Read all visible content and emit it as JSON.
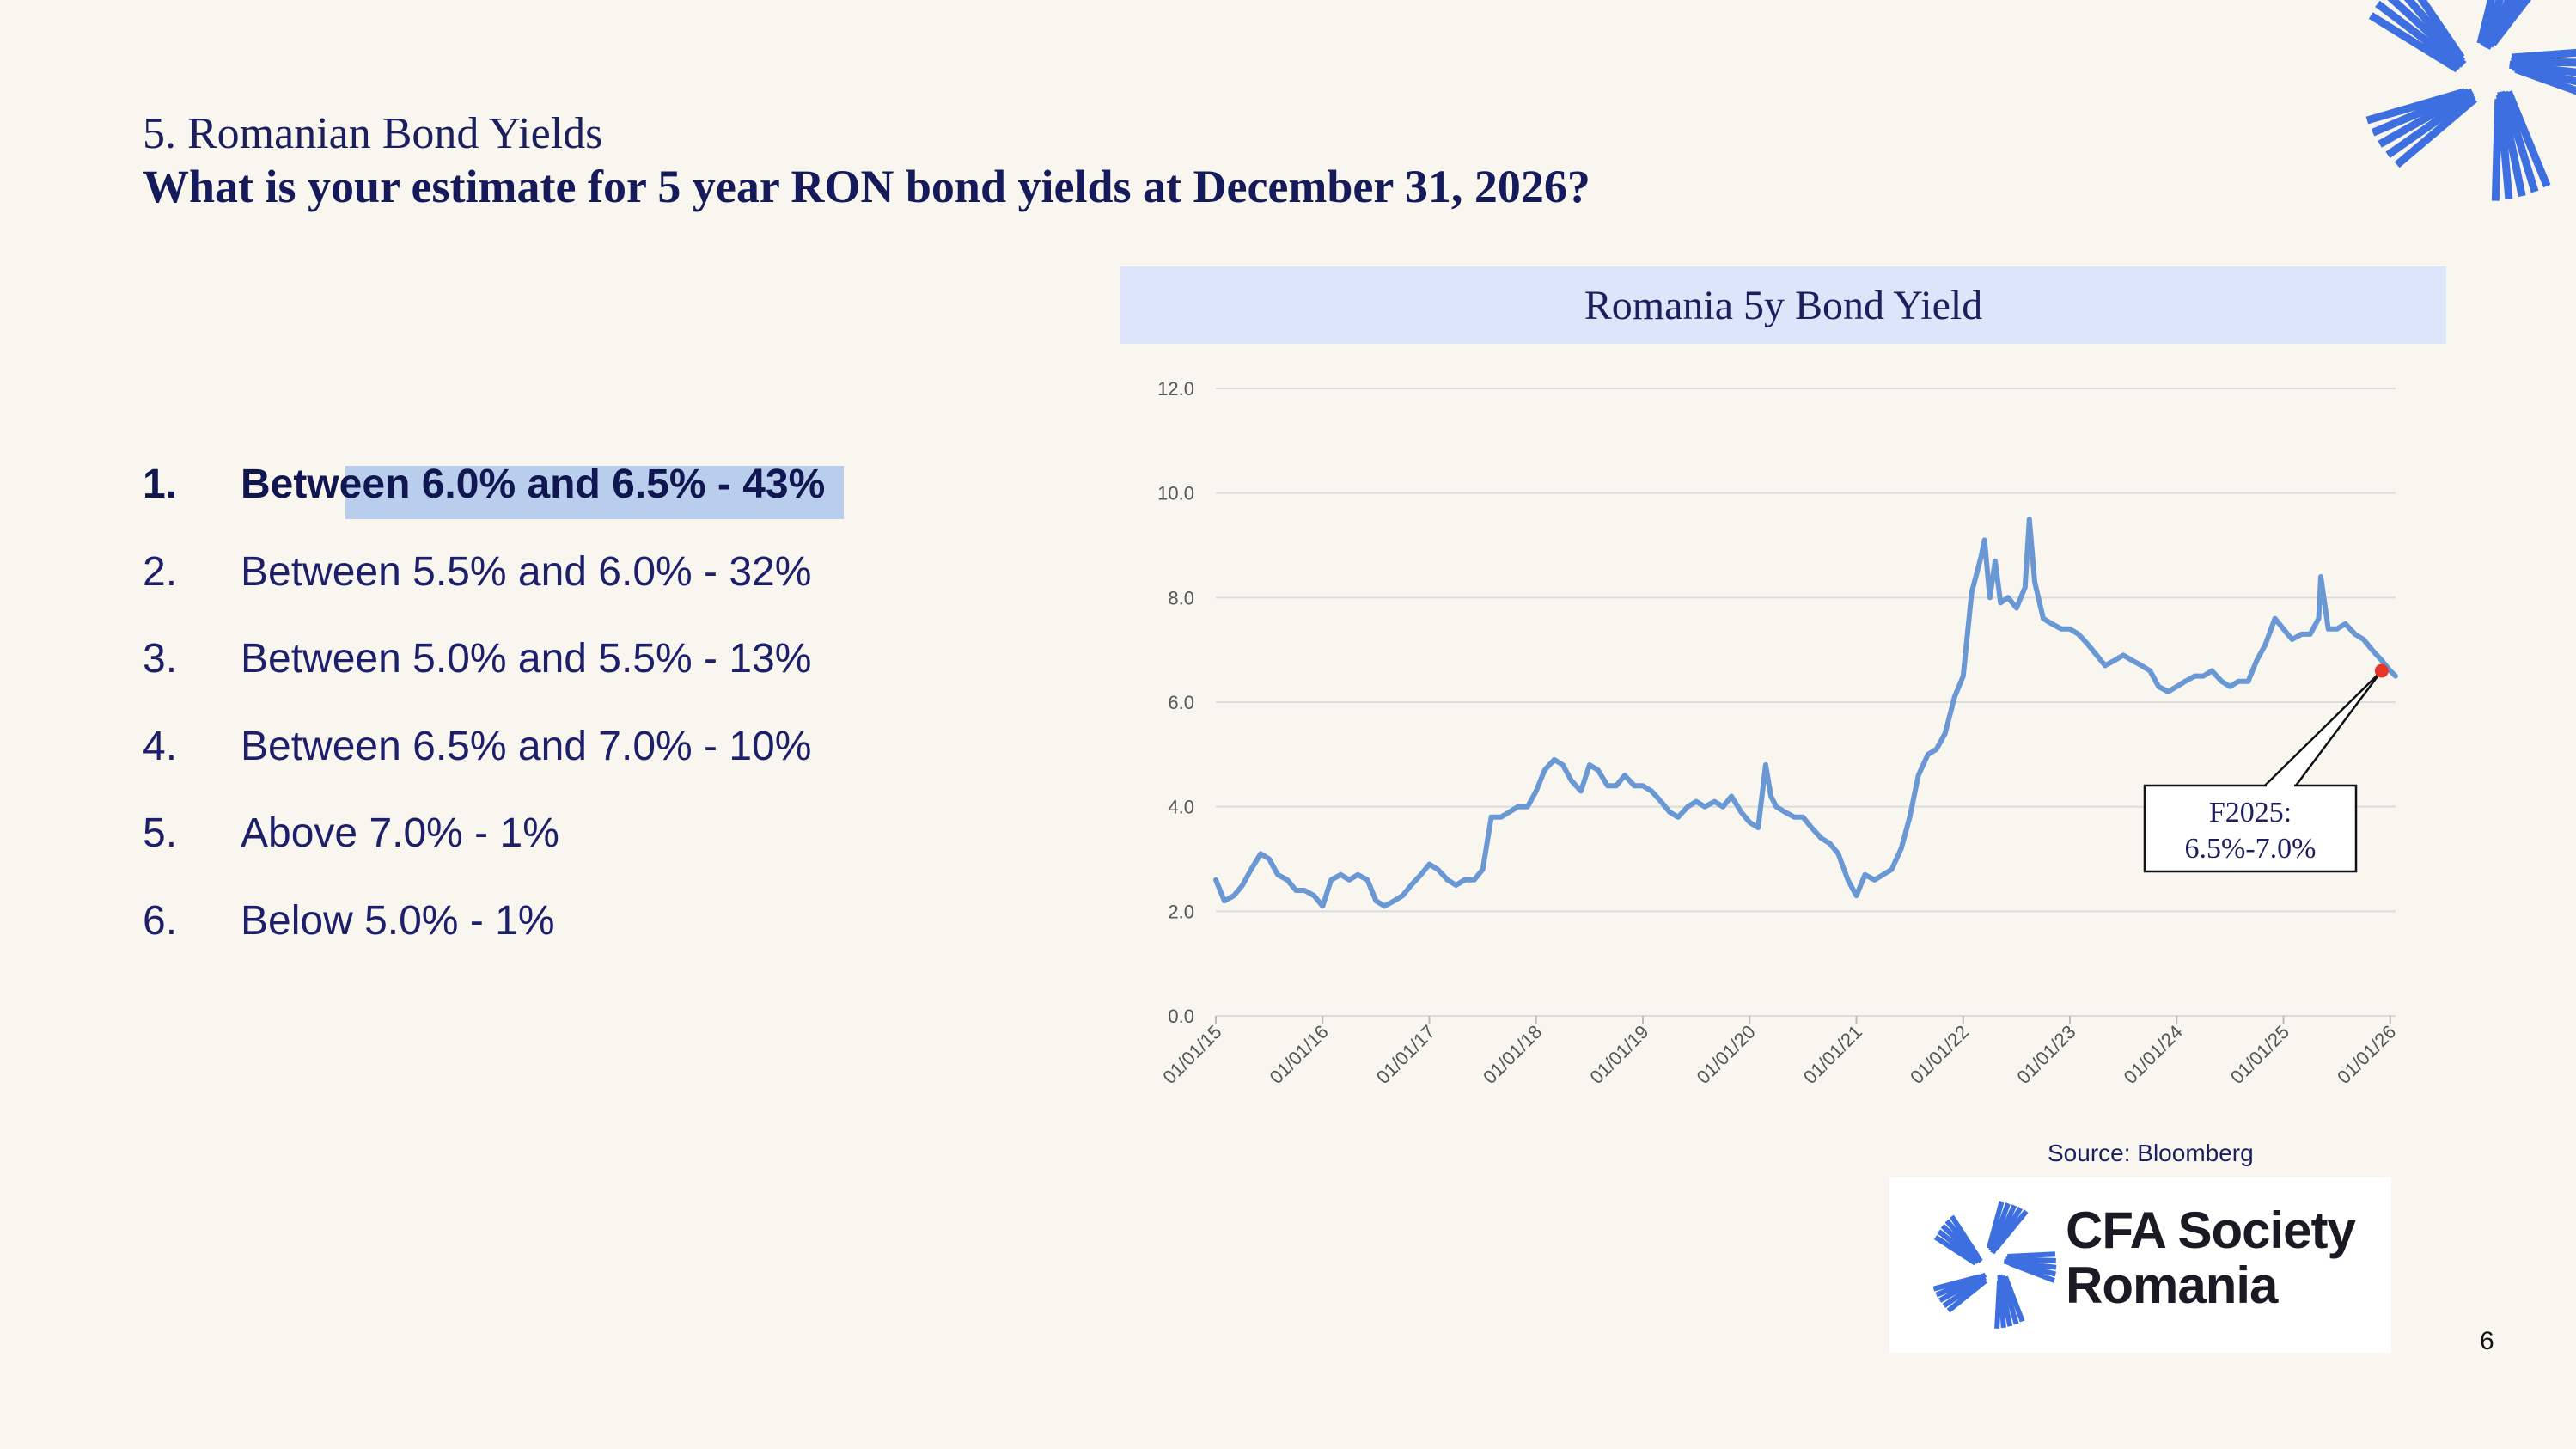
{
  "heading": {
    "subtitle": "5. Romanian Bond Yields",
    "question": "What is your estimate  for 5 year RON bond yields at December 31, 2026?"
  },
  "options": [
    {
      "num": "1.",
      "label": "Between 6.0% and 6.5% - 43%",
      "selected": true
    },
    {
      "num": "2.",
      "label": "Between 5.5% and 6.0% - 32%",
      "selected": false
    },
    {
      "num": "3.",
      "label": "Between 5.0% and 5.5% - 13%",
      "selected": false
    },
    {
      "num": "4.",
      "label": "Between 6.5% and 7.0% - 10%",
      "selected": false
    },
    {
      "num": "5.",
      "label": "Above 7.0%  - 1%",
      "selected": false
    },
    {
      "num": "6.",
      "label": "Below 5.0% - 1%",
      "selected": false
    }
  ],
  "colors": {
    "line": "#6a98d4",
    "marker": "#e8352a",
    "grid": "#dcdcdc",
    "text_dark": "#1b1f5e",
    "logo_blue": "#3d6fe0"
  },
  "chart_data": {
    "type": "line",
    "title": "Romania 5y Bond Yield",
    "ylim": [
      0,
      12
    ],
    "y_ticks": [
      "0.0",
      "2.0",
      "4.0",
      "6.0",
      "8.0",
      "10.0",
      "12.0"
    ],
    "x_range": [
      2015.0,
      2026.05
    ],
    "x_tick_labels": [
      "01/01/15",
      "01/01/16",
      "01/01/17",
      "01/01/18",
      "01/01/19",
      "01/01/20",
      "01/01/21",
      "01/01/22",
      "01/01/23",
      "01/01/24",
      "01/01/25",
      "01/01/26"
    ],
    "grid": true,
    "series": [
      {
        "name": "Romania 5y Bond Yield",
        "x": [
          2015.0,
          2015.08,
          2015.17,
          2015.25,
          2015.33,
          2015.42,
          2015.5,
          2015.58,
          2015.67,
          2015.75,
          2015.83,
          2015.92,
          2016.0,
          2016.08,
          2016.17,
          2016.25,
          2016.33,
          2016.42,
          2016.5,
          2016.58,
          2016.67,
          2016.75,
          2016.83,
          2016.92,
          2017.0,
          2017.08,
          2017.17,
          2017.25,
          2017.33,
          2017.42,
          2017.5,
          2017.58,
          2017.67,
          2017.75,
          2017.83,
          2017.92,
          2018.0,
          2018.08,
          2018.17,
          2018.25,
          2018.33,
          2018.42,
          2018.5,
          2018.58,
          2018.67,
          2018.75,
          2018.83,
          2018.92,
          2019.0,
          2019.08,
          2019.17,
          2019.25,
          2019.33,
          2019.42,
          2019.5,
          2019.58,
          2019.67,
          2019.75,
          2019.83,
          2019.92,
          2020.0,
          2020.08,
          2020.15,
          2020.2,
          2020.25,
          2020.33,
          2020.42,
          2020.5,
          2020.58,
          2020.67,
          2020.75,
          2020.83,
          2020.92,
          2021.0,
          2021.08,
          2021.17,
          2021.25,
          2021.33,
          2021.42,
          2021.5,
          2021.58,
          2021.67,
          2021.75,
          2021.83,
          2021.92,
          2022.0,
          2022.08,
          2022.17,
          2022.2,
          2022.25,
          2022.3,
          2022.35,
          2022.42,
          2022.5,
          2022.58,
          2022.62,
          2022.67,
          2022.75,
          2022.83,
          2022.92,
          2023.0,
          2023.08,
          2023.17,
          2023.25,
          2023.33,
          2023.42,
          2023.5,
          2023.58,
          2023.67,
          2023.75,
          2023.83,
          2023.92,
          2024.0,
          2024.08,
          2024.17,
          2024.25,
          2024.33,
          2024.42,
          2024.5,
          2024.58,
          2024.67,
          2024.75,
          2024.83,
          2024.92,
          2025.0,
          2025.08,
          2025.17,
          2025.25,
          2025.33,
          2025.35,
          2025.42,
          2025.5,
          2025.58,
          2025.67,
          2025.75,
          2025.83,
          2025.92,
          2026.0,
          2026.05
        ],
        "values": [
          2.6,
          2.2,
          2.3,
          2.5,
          2.8,
          3.1,
          3.0,
          2.7,
          2.6,
          2.4,
          2.4,
          2.3,
          2.1,
          2.6,
          2.7,
          2.6,
          2.7,
          2.6,
          2.2,
          2.1,
          2.2,
          2.3,
          2.5,
          2.7,
          2.9,
          2.8,
          2.6,
          2.5,
          2.6,
          2.6,
          2.8,
          3.8,
          3.8,
          3.9,
          4.0,
          4.0,
          4.3,
          4.7,
          4.9,
          4.8,
          4.5,
          4.3,
          4.8,
          4.7,
          4.4,
          4.4,
          4.6,
          4.4,
          4.4,
          4.3,
          4.1,
          3.9,
          3.8,
          4.0,
          4.1,
          4.0,
          4.1,
          4.0,
          4.2,
          3.9,
          3.7,
          3.6,
          4.8,
          4.2,
          4.0,
          3.9,
          3.8,
          3.8,
          3.6,
          3.4,
          3.3,
          3.1,
          2.6,
          2.3,
          2.7,
          2.6,
          2.7,
          2.8,
          3.2,
          3.8,
          4.6,
          5.0,
          5.1,
          5.4,
          6.1,
          6.5,
          8.1,
          8.8,
          9.1,
          8.0,
          8.7,
          7.9,
          8.0,
          7.8,
          8.2,
          9.5,
          8.3,
          7.6,
          7.5,
          7.4,
          7.4,
          7.3,
          7.1,
          6.9,
          6.7,
          6.8,
          6.9,
          6.8,
          6.7,
          6.6,
          6.3,
          6.2,
          6.3,
          6.4,
          6.5,
          6.5,
          6.6,
          6.4,
          6.3,
          6.4,
          6.4,
          6.8,
          7.1,
          7.6,
          7.4,
          7.2,
          7.3,
          7.3,
          7.6,
          8.4,
          7.4,
          7.4,
          7.5,
          7.3,
          7.2,
          7.0,
          6.8,
          6.6,
          6.5
        ]
      }
    ],
    "annotation": {
      "label_line1": "F2025:",
      "label_line2": "6.5%-7.0%",
      "point_x": 2025.92,
      "point_y": 6.6
    },
    "source": "Source: Bloomberg"
  },
  "logo": {
    "line1": "CFA Society",
    "line2": "Romania"
  },
  "page_number": "6"
}
